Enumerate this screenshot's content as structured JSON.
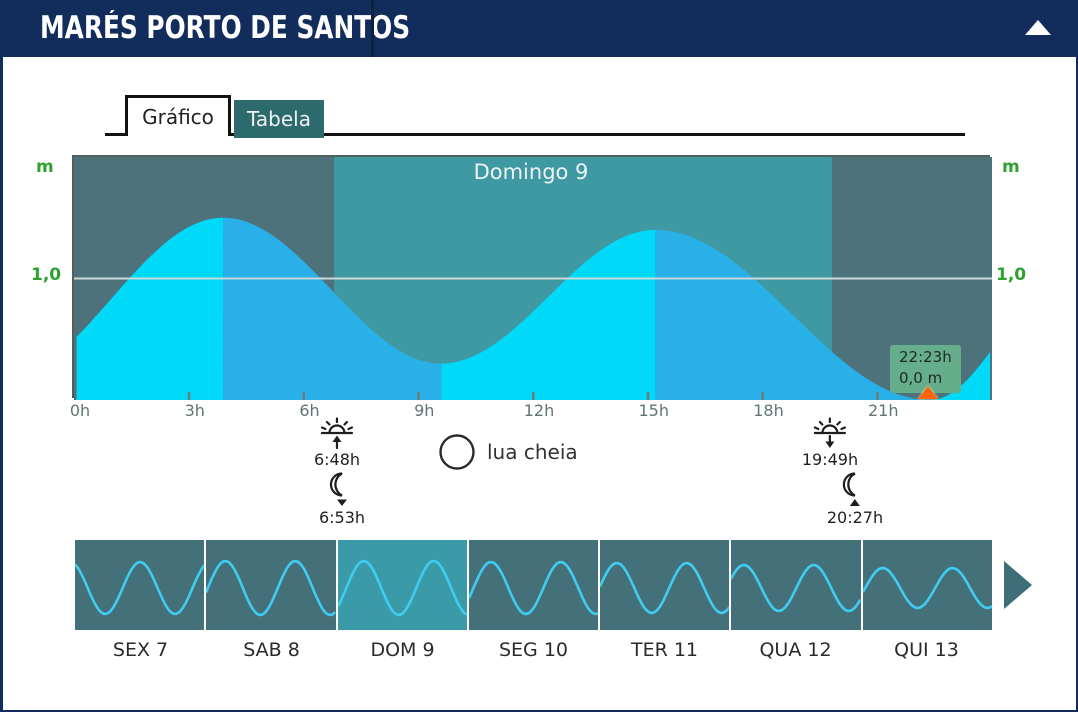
{
  "header": {
    "title": "MARÉS PORTO DE SANTOS",
    "collapse_icon": "collapse-up-arrow"
  },
  "tabs": {
    "grafico": "Gráfico",
    "tabela": "Tabela",
    "active": "Gráfico"
  },
  "chart_data": {
    "type": "area",
    "title": "Domingo 9",
    "unit_label": "m",
    "ylabel": "m",
    "gridline_label": "1,0",
    "gridline_value": 1.0,
    "ylim": [
      0,
      2.0
    ],
    "x_hours": [
      0,
      24
    ],
    "x_ticks": [
      "0h",
      "3h",
      "6h",
      "9h",
      "12h",
      "15h",
      "18h",
      "21h"
    ],
    "grid": "horizontal-only",
    "tide_curve_anchors": [
      {
        "hour": -2.0,
        "height": 0.15
      },
      {
        "hour": 3.9,
        "height": 1.5
      },
      {
        "hour": 9.6,
        "height": 0.3
      },
      {
        "hour": 15.2,
        "height": 1.4
      },
      {
        "hour": 22.383,
        "height": 0.0
      },
      {
        "hour": 26.0,
        "height": 1.0
      }
    ],
    "highlighted_extreme": {
      "time": "22:23h",
      "height_label": "0,0 m",
      "height": 0.0
    },
    "day_band": {
      "from_time": "6:48h",
      "to_time": "19:49h"
    }
  },
  "sun_moon": {
    "sunrise": {
      "icon": "sunrise-icon",
      "time": "6:48h"
    },
    "moonset": {
      "icon": "moonset-icon",
      "time": "6:53h"
    },
    "moon_phase": {
      "icon": "full-moon-icon",
      "label": "lua cheia"
    },
    "sunset": {
      "icon": "sunset-icon",
      "time": "19:49h"
    },
    "moonrise": {
      "icon": "moonrise-icon",
      "time": "20:27h"
    }
  },
  "day_strip": {
    "days": [
      {
        "label": "SEX 7",
        "selected": false,
        "wave_phase": 2.0,
        "wave_amp": 26
      },
      {
        "label": "SAB 8",
        "selected": false,
        "wave_phase": -0.17,
        "wave_amp": 27
      },
      {
        "label": "DOM 9",
        "selected": true,
        "wave_phase": -0.75,
        "wave_amp": 27
      },
      {
        "label": "SEG 10",
        "selected": false,
        "wave_phase": -0.4,
        "wave_amp": 26
      },
      {
        "label": "TER 11",
        "selected": false,
        "wave_phase": 0.06,
        "wave_amp": 25
      },
      {
        "label": "QUA 12",
        "selected": false,
        "wave_phase": 0.41,
        "wave_amp": 23
      },
      {
        "label": "QUI 13",
        "selected": false,
        "wave_phase": -0.2,
        "wave_amp": 20
      }
    ],
    "next_icon": "next-right-arrow"
  },
  "colors": {
    "navy": "#122d5c",
    "tab_teal": "#2d6a6e",
    "night": "#4d727b",
    "day": "#3f99a3",
    "rising": "#00d9f7",
    "falling": "#29b0e8",
    "gridline": "#ccd9d9",
    "axis_text": "#5f7575",
    "green_label": "#2fa12f",
    "tooltip_bg": "#66ad8c",
    "marker": "#ff6600",
    "wave": "#3fcdf2",
    "thumb_bg": "#44707a",
    "thumb_selected": "#3a9aa8",
    "arrow": "#3e6e78"
  }
}
